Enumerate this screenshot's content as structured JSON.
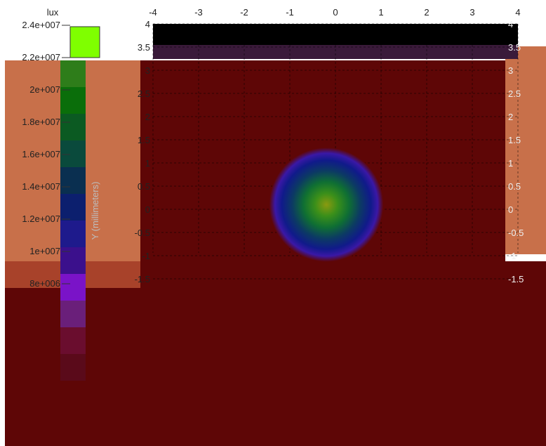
{
  "chart_data": {
    "type": "heatmap",
    "title": "",
    "xlabel": "",
    "ylabel": "Y (millimeters)",
    "xlim": [
      -4,
      4
    ],
    "ylim": [
      -4,
      4
    ],
    "x_ticks": [
      "-4",
      "-3",
      "-2",
      "-1",
      "0",
      "1",
      "2",
      "3",
      "4"
    ],
    "y_ticks_visible": [
      "4",
      "3.5",
      "3",
      "2.5",
      "2",
      "1.5",
      "1",
      "0.5",
      "0",
      "-0.5",
      "-1",
      "-1.5"
    ],
    "right_ticks_visible": [
      "4",
      "3.5",
      "3",
      "2.5",
      "2",
      "1.5",
      "1",
      "0.5",
      "0",
      "-0.5",
      "-1",
      "-1.5"
    ],
    "grid": true,
    "spot": {
      "center_x": -0.2,
      "center_y": 0.1,
      "radius": 1.25
    },
    "colorbar": {
      "unit": "lux",
      "ticks": [
        "2.4e+007",
        "2.2e+007",
        "2e+007",
        "1.8e+007",
        "1.6e+007",
        "1.4e+007",
        "1.2e+007",
        "1e+007",
        "8e+006"
      ],
      "colors": [
        "#7fff00",
        "#2e7d1a",
        "#0a6e0a",
        "#0b5a22",
        "#0a4a3c",
        "#0a2f50",
        "#0c1f6e",
        "#1e1a8c",
        "#3b108c",
        "#7a13c8",
        "#6a1f7a",
        "#6a0d2e",
        "#5a0a1a"
      ]
    },
    "background_colors": {
      "field": "#5e0606",
      "top_strip": "#000000",
      "panel": "#c8704a"
    }
  }
}
